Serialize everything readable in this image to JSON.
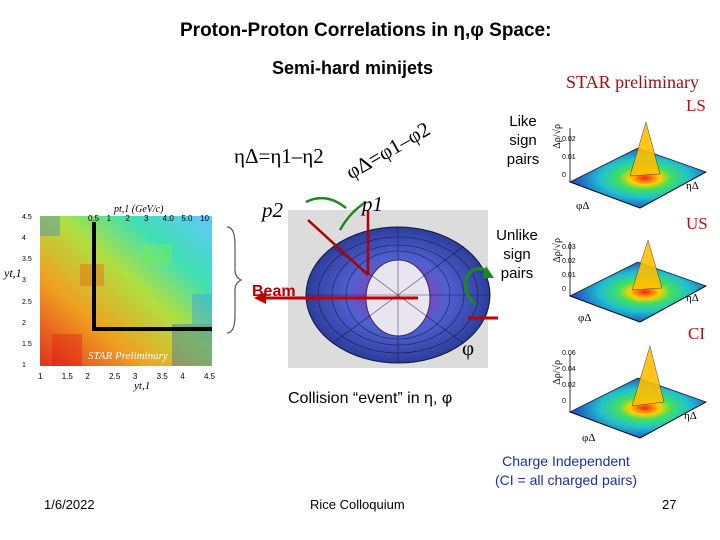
{
  "slide": {
    "title": "Proton-Proton Correlations in η,φ Space:",
    "subtitle": "Semi-hard minijets",
    "star_preliminary": "STAR preliminary"
  },
  "plots": [
    {
      "tag": "LS",
      "pair_label": [
        "Like",
        "sign",
        "pairs"
      ],
      "z_label": "Δρ/√ρ",
      "z_ticks": [
        "0.02",
        "0.01",
        "0"
      ],
      "x_label": "φΔ",
      "y_label": "ηΔ"
    },
    {
      "tag": "US",
      "pair_label": [
        "Unlike",
        "sign",
        "pairs"
      ],
      "z_label": "Δρ/√ρ",
      "z_ticks": [
        "0.03",
        "0.02",
        "0.01",
        "0"
      ],
      "x_label": "φΔ",
      "y_label": "ηΔ"
    },
    {
      "tag": "CI",
      "pair_label": [],
      "z_label": "Δρ/√ρ",
      "z_ticks": [
        "0.06",
        "0.04",
        "0.02",
        "0"
      ],
      "x_label": "φΔ",
      "y_label": "ηΔ"
    }
  ],
  "diagram": {
    "eta_delta": "ηΔ=η1–η2",
    "phi_delta": "φΔ=φ1–φ2",
    "p1": "p1",
    "p2": "p2",
    "phi_symbol": "φ",
    "beam_label": "Beam",
    "event_caption": "Collision “event” in η, φ"
  },
  "heatmap": {
    "axis_top": "pt,1 (GeV/c)",
    "axis_left": "yt,1",
    "axis_bottom": "yt,1",
    "top_ticks": [
      "0.5",
      "1",
      "2",
      "3",
      "4.0",
      "5.0",
      "10"
    ],
    "left_ticks": [
      "4.5",
      "4",
      "3.5",
      "3",
      "2.5",
      "2",
      "1.5",
      "1"
    ],
    "bottom_ticks": [
      "1",
      "1.5",
      "2",
      "2.5",
      "3",
      "3.5",
      "4",
      "4.5"
    ],
    "watermark": "STAR Preliminary"
  },
  "charge_independent": {
    "line1": "Charge Independent",
    "line2": "(CI = all charged pairs)"
  },
  "footer": {
    "date": "1/6/2022",
    "venue": "Rice Colloquium",
    "page": "27"
  },
  "colors": {
    "title": "#000000",
    "accent_red": "#b00000",
    "ci_blue": "#1a2fa0",
    "surface_peak": "#e02020",
    "surface_floor": "#2040c0"
  }
}
